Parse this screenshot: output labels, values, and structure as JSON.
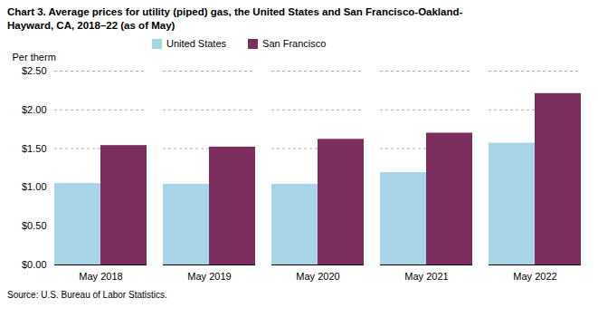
{
  "chart_data": {
    "type": "bar",
    "title": "Chart 3. Average prices for utility (piped) gas, the United States and San Francisco-Oakland-\nHayward, CA, 2018–22 (as of May)",
    "ylabel": "Per therm",
    "caption": "Source: U.S. Bureau of Labor Statistics.",
    "categories": [
      "May 2018",
      "May 2019",
      "May 2020",
      "May 2021",
      "May 2022"
    ],
    "series": [
      {
        "name": "United States",
        "color": "#a8d4e8",
        "values": [
          1.05,
          1.04,
          1.04,
          1.19,
          1.57
        ]
      },
      {
        "name": "San Francisco",
        "color": "#7b2d5e",
        "values": [
          1.54,
          1.52,
          1.62,
          1.7,
          2.21
        ]
      }
    ],
    "ylim": [
      0,
      2.5
    ],
    "yticks": [
      {
        "value": 0,
        "label": "$0.00"
      },
      {
        "value": 0.5,
        "label": "$0.50"
      },
      {
        "value": 1,
        "label": "$1.00"
      },
      {
        "value": 1.5,
        "label": "$1.50"
      },
      {
        "value": 2,
        "label": "$2.00"
      },
      {
        "value": 2.5,
        "label": "$2.50"
      }
    ],
    "grid": true,
    "legend": "top"
  }
}
